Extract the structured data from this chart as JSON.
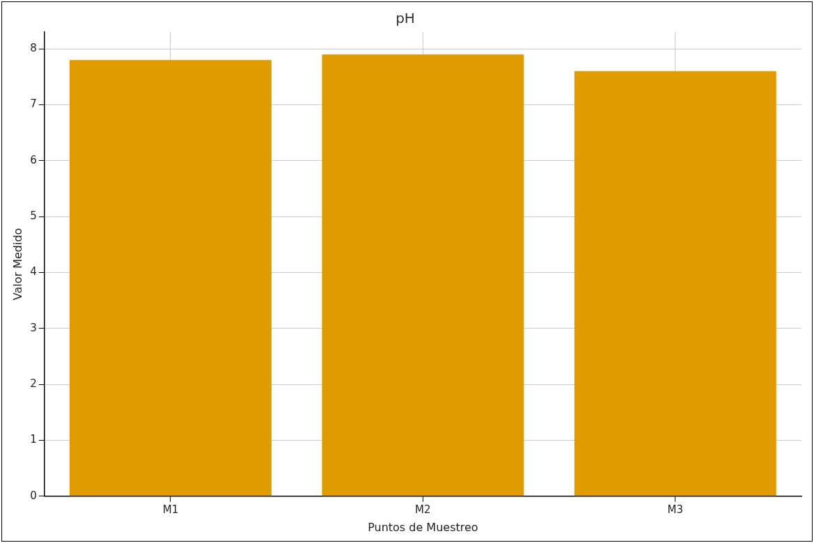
{
  "chart_data": {
    "type": "bar",
    "title": "pH",
    "xlabel": "Puntos de Muestreo",
    "ylabel": "Valor Medido",
    "categories": [
      "M1",
      "M2",
      "M3"
    ],
    "values": [
      7.8,
      7.9,
      7.6
    ],
    "color": "#e09b00",
    "ylim": [
      0,
      8.3
    ],
    "yticks": [
      0,
      1,
      2,
      3,
      4,
      5,
      6,
      7,
      8
    ],
    "grid": true
  }
}
